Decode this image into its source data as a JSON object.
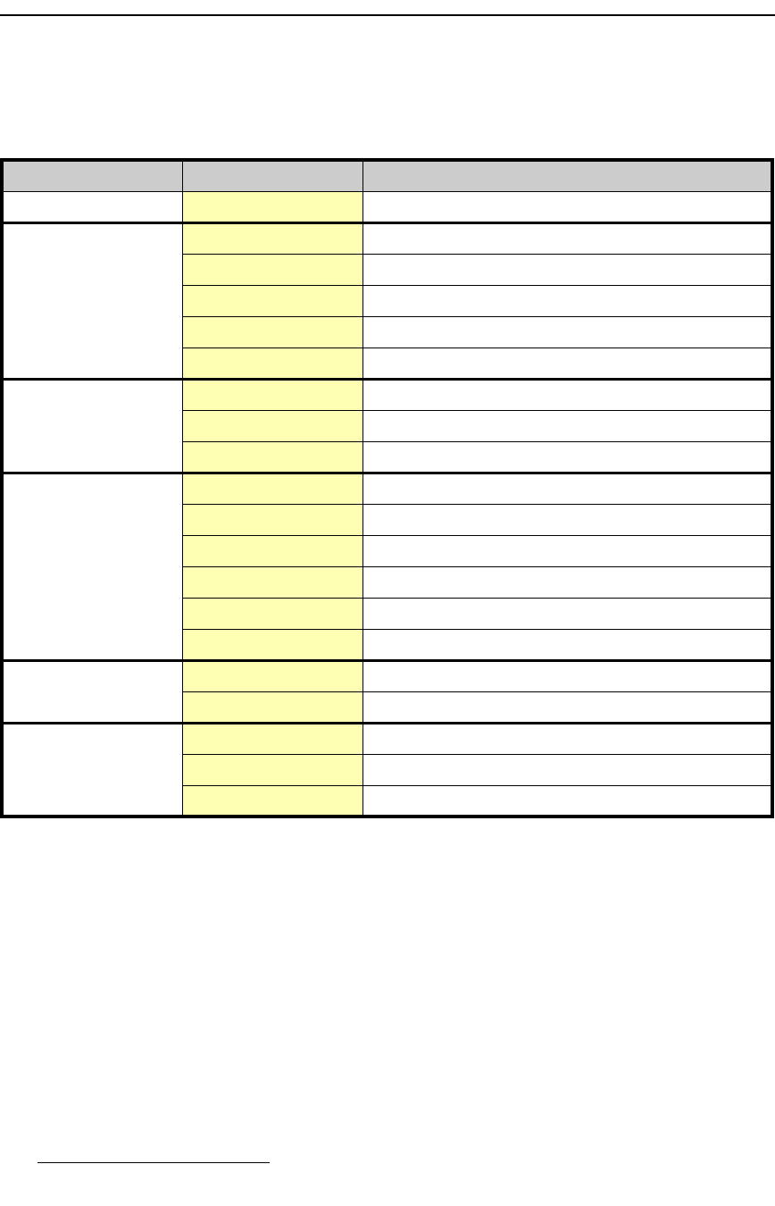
{
  "colors": {
    "header_bg": "#cccccc",
    "value_cell_bg": "#ffffb3",
    "border": "#000000"
  },
  "table": {
    "headers": [
      "",
      "",
      ""
    ],
    "groups": [
      {
        "label": "",
        "rows": [
          {
            "value": "",
            "description": ""
          }
        ]
      },
      {
        "label": "",
        "rows": [
          {
            "value": "",
            "description": ""
          },
          {
            "value": "",
            "description": ""
          },
          {
            "value": "",
            "description": ""
          },
          {
            "value": "",
            "description": ""
          },
          {
            "value": "",
            "description": ""
          }
        ]
      },
      {
        "label": "",
        "rows": [
          {
            "value": "",
            "description": ""
          },
          {
            "value": "",
            "description": ""
          },
          {
            "value": "",
            "description": ""
          }
        ]
      },
      {
        "label": "",
        "rows": [
          {
            "value": "",
            "description": ""
          },
          {
            "value": "",
            "description": ""
          },
          {
            "value": "",
            "description": ""
          },
          {
            "value": "",
            "description": ""
          },
          {
            "value": "",
            "description": ""
          },
          {
            "value": "",
            "description": ""
          }
        ]
      },
      {
        "label": "",
        "rows": [
          {
            "value": "",
            "description": ""
          },
          {
            "value": "",
            "description": ""
          }
        ]
      },
      {
        "label": "",
        "rows": [
          {
            "value": "",
            "description": ""
          },
          {
            "value": "",
            "description": ""
          },
          {
            "value": "",
            "description": ""
          }
        ]
      }
    ]
  }
}
